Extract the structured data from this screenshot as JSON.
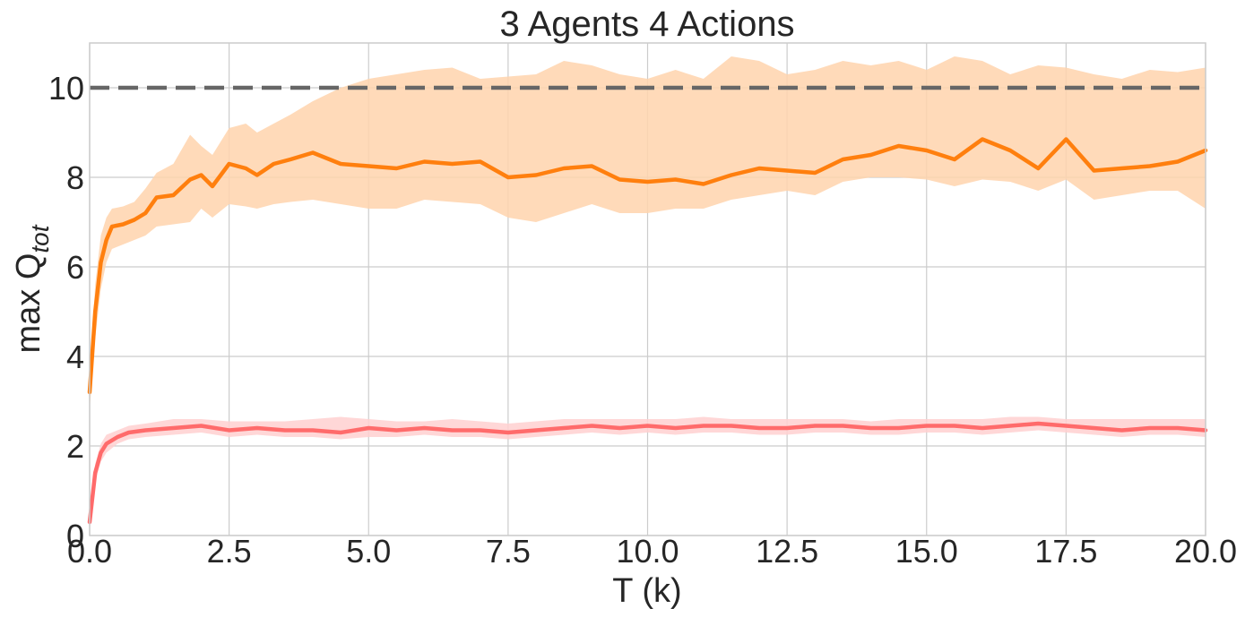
{
  "chart_data": {
    "type": "line",
    "title": "3 Agents 4 Actions",
    "xlabel": "T (k)",
    "ylabel_main": "max Q",
    "ylabel_sub": "tot",
    "xlim": [
      0,
      20
    ],
    "ylim": [
      0,
      11
    ],
    "xticks": [
      "0.0",
      "2.5",
      "5.0",
      "7.5",
      "10.0",
      "12.5",
      "15.0",
      "17.5",
      "20.0"
    ],
    "yticks": [
      "0",
      "2",
      "4",
      "6",
      "8",
      "10"
    ],
    "xtick_values": [
      0,
      2.5,
      5,
      7.5,
      10,
      12.5,
      15,
      17.5,
      20
    ],
    "ytick_values": [
      0,
      2,
      4,
      6,
      8,
      10
    ],
    "grid": true,
    "reference_line": {
      "y": 10,
      "style": "dashed",
      "color": "#666666"
    },
    "series": [
      {
        "color": "#ff7f0e",
        "fill_color": "#ffd4ad",
        "x": [
          0,
          0.1,
          0.2,
          0.3,
          0.4,
          0.6,
          0.8,
          1.0,
          1.2,
          1.5,
          1.8,
          2.0,
          2.2,
          2.5,
          2.8,
          3.0,
          3.3,
          3.6,
          4.0,
          4.5,
          5.0,
          5.5,
          6.0,
          6.5,
          7.0,
          7.5,
          8.0,
          8.5,
          9.0,
          9.5,
          10.0,
          10.5,
          11.0,
          11.5,
          12.0,
          12.5,
          13.0,
          13.5,
          14.0,
          14.5,
          15.0,
          15.5,
          16.0,
          16.5,
          17.0,
          17.5,
          18.0,
          18.5,
          19.0,
          19.5,
          20.0
        ],
        "mean": [
          3.2,
          5.0,
          6.1,
          6.6,
          6.9,
          6.95,
          7.05,
          7.2,
          7.55,
          7.6,
          7.95,
          8.05,
          7.8,
          8.3,
          8.2,
          8.05,
          8.3,
          8.4,
          8.55,
          8.3,
          8.25,
          8.2,
          8.35,
          8.3,
          8.35,
          8.0,
          8.05,
          8.2,
          8.25,
          7.95,
          7.9,
          7.95,
          7.85,
          8.05,
          8.2,
          8.15,
          8.1,
          8.4,
          8.5,
          8.7,
          8.6,
          8.4,
          8.85,
          8.6,
          8.2,
          8.85,
          8.15,
          8.2,
          8.25,
          8.35,
          8.6
        ],
        "upper": [
          3.6,
          5.6,
          6.7,
          7.1,
          7.3,
          7.35,
          7.45,
          7.75,
          8.1,
          8.3,
          8.95,
          8.7,
          8.5,
          9.1,
          9.2,
          9.0,
          9.2,
          9.4,
          9.7,
          10.0,
          10.2,
          10.3,
          10.4,
          10.45,
          10.2,
          10.25,
          10.3,
          10.6,
          10.5,
          10.3,
          10.2,
          10.4,
          10.2,
          10.7,
          10.6,
          10.3,
          10.4,
          10.6,
          10.5,
          10.6,
          10.4,
          10.7,
          10.6,
          10.3,
          10.5,
          10.45,
          10.3,
          10.2,
          10.4,
          10.35,
          10.45
        ],
        "lower": [
          2.8,
          4.4,
          5.5,
          6.1,
          6.4,
          6.5,
          6.6,
          6.7,
          6.9,
          6.95,
          7.0,
          7.3,
          7.1,
          7.4,
          7.35,
          7.3,
          7.4,
          7.45,
          7.5,
          7.4,
          7.3,
          7.3,
          7.5,
          7.45,
          7.4,
          7.1,
          7.0,
          7.2,
          7.4,
          7.2,
          7.2,
          7.3,
          7.3,
          7.5,
          7.6,
          7.7,
          7.6,
          7.9,
          8.0,
          8.0,
          7.95,
          7.8,
          7.95,
          7.9,
          7.7,
          7.95,
          7.5,
          7.6,
          7.7,
          7.7,
          7.3
        ]
      },
      {
        "color": "#ff6b6b",
        "fill_color": "#ffd0d0",
        "x": [
          0,
          0.1,
          0.2,
          0.3,
          0.5,
          0.7,
          1.0,
          1.5,
          2.0,
          2.5,
          3.0,
          3.5,
          4.0,
          4.5,
          5.0,
          5.5,
          6.0,
          6.5,
          7.0,
          7.5,
          8.0,
          8.5,
          9.0,
          9.5,
          10.0,
          10.5,
          11.0,
          11.5,
          12.0,
          12.5,
          13.0,
          13.5,
          14.0,
          14.5,
          15.0,
          15.5,
          16.0,
          16.5,
          17.0,
          17.5,
          18.0,
          18.5,
          19.0,
          19.5,
          20.0
        ],
        "mean": [
          0.3,
          1.4,
          1.85,
          2.05,
          2.2,
          2.3,
          2.35,
          2.4,
          2.45,
          2.35,
          2.4,
          2.35,
          2.35,
          2.3,
          2.4,
          2.35,
          2.4,
          2.35,
          2.35,
          2.3,
          2.35,
          2.4,
          2.45,
          2.4,
          2.45,
          2.4,
          2.45,
          2.45,
          2.4,
          2.4,
          2.45,
          2.45,
          2.4,
          2.4,
          2.45,
          2.45,
          2.4,
          2.45,
          2.5,
          2.45,
          2.4,
          2.35,
          2.4,
          2.4,
          2.35
        ],
        "upper": [
          0.5,
          1.6,
          2.05,
          2.25,
          2.35,
          2.45,
          2.5,
          2.6,
          2.6,
          2.55,
          2.55,
          2.55,
          2.6,
          2.65,
          2.6,
          2.55,
          2.55,
          2.6,
          2.55,
          2.5,
          2.55,
          2.6,
          2.6,
          2.6,
          2.6,
          2.6,
          2.65,
          2.6,
          2.6,
          2.6,
          2.6,
          2.6,
          2.55,
          2.6,
          2.6,
          2.6,
          2.6,
          2.65,
          2.65,
          2.6,
          2.6,
          2.6,
          2.6,
          2.6,
          2.6
        ],
        "lower": [
          0.1,
          1.2,
          1.65,
          1.85,
          2.05,
          2.15,
          2.2,
          2.25,
          2.3,
          2.2,
          2.25,
          2.2,
          2.2,
          2.15,
          2.2,
          2.2,
          2.25,
          2.2,
          2.2,
          2.15,
          2.2,
          2.25,
          2.3,
          2.25,
          2.3,
          2.25,
          2.3,
          2.3,
          2.25,
          2.25,
          2.3,
          2.3,
          2.25,
          2.25,
          2.3,
          2.3,
          2.25,
          2.3,
          2.35,
          2.3,
          2.25,
          2.2,
          2.25,
          2.25,
          2.2
        ]
      }
    ]
  }
}
